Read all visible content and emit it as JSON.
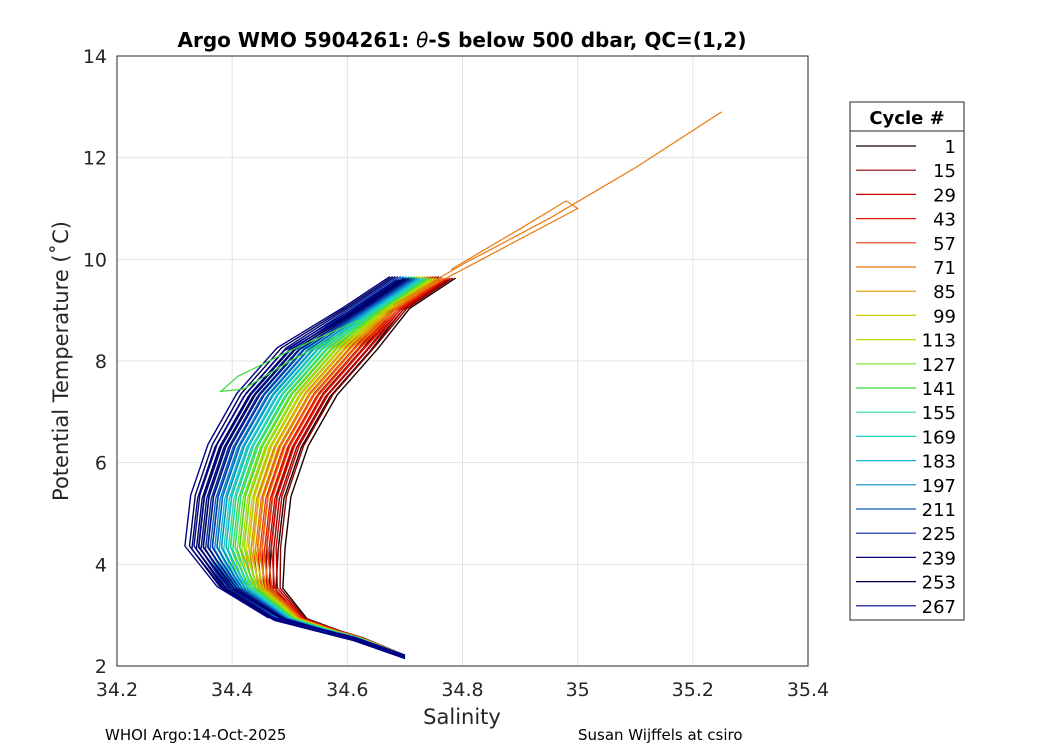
{
  "chart_data": {
    "type": "line",
    "title_prefix": "Argo WMO 5904261: ",
    "title_theta": "θ",
    "title_suffix": "-S below 500 dbar,  QC=(1,2)",
    "xlabel": "Salinity",
    "ylabel": "Potential Temperature (˚C)",
    "xlim": [
      34.2,
      35.4
    ],
    "ylim": [
      2,
      14
    ],
    "xticks": [
      "34.2",
      "34.4",
      "34.6",
      "34.8",
      "35",
      "35.2",
      "35.4"
    ],
    "yticks": [
      "2",
      "4",
      "6",
      "8",
      "10",
      "12",
      "14"
    ],
    "grid": true,
    "legend": {
      "title": "Cycle #",
      "placement": "right",
      "entries": [
        "1",
        "15",
        "29",
        "43",
        "57",
        "71",
        "85",
        "99",
        "113",
        "127",
        "141",
        "155",
        "169",
        "183",
        "197",
        "211",
        "225",
        "239",
        "253",
        "267"
      ],
      "colors": [
        "#1a0000",
        "#8c0000",
        "#c80000",
        "#e61400",
        "#f03c0a",
        "#e8780a",
        "#dc9600",
        "#d2c800",
        "#b4dc00",
        "#78e61e",
        "#3cdc3c",
        "#28dca0",
        "#1ed2c8",
        "#14b4dc",
        "#0a8cc8",
        "#0a5abe",
        "#0a28a0",
        "#050a78",
        "#000050",
        "#00008c"
      ]
    },
    "series_envelope": {
      "base_points": [
        [
          34.7,
          2.15
        ],
        [
          34.62,
          2.5
        ],
        [
          34.5,
          2.9
        ],
        [
          34.44,
          3.5
        ],
        [
          34.42,
          4.3
        ],
        [
          34.43,
          5.3
        ],
        [
          34.46,
          6.3
        ],
        [
          34.51,
          7.3
        ],
        [
          34.58,
          8.2
        ],
        [
          34.66,
          9.0
        ],
        [
          34.74,
          9.6
        ]
      ],
      "salinity_offset_first": 0.06,
      "salinity_offset_last": -0.09
    },
    "series_extras": [
      {
        "cycle": "71",
        "color": "#e8780a",
        "points": [
          [
            34.68,
            9.1
          ],
          [
            34.8,
            9.9
          ],
          [
            34.95,
            10.8
          ],
          [
            35.1,
            11.8
          ],
          [
            35.25,
            12.9
          ]
        ]
      },
      {
        "cycle": "71",
        "color": "#e8780a",
        "points": [
          [
            34.7,
            9.2
          ],
          [
            34.85,
            10.1
          ],
          [
            35.0,
            11.0
          ],
          [
            34.98,
            11.15
          ],
          [
            34.9,
            10.6
          ],
          [
            34.78,
            9.8
          ]
        ]
      },
      {
        "cycle": "141",
        "color": "#3cdc3c",
        "points": [
          [
            34.62,
            8.8
          ],
          [
            34.5,
            8.2
          ],
          [
            34.41,
            7.7
          ],
          [
            34.38,
            7.4
          ],
          [
            34.42,
            7.45
          ],
          [
            34.5,
            8.0
          ],
          [
            34.6,
            8.6
          ]
        ]
      }
    ]
  },
  "footer": {
    "left": "WHOI Argo:14-Oct-2025",
    "right": "Susan Wijffels at csiro"
  }
}
